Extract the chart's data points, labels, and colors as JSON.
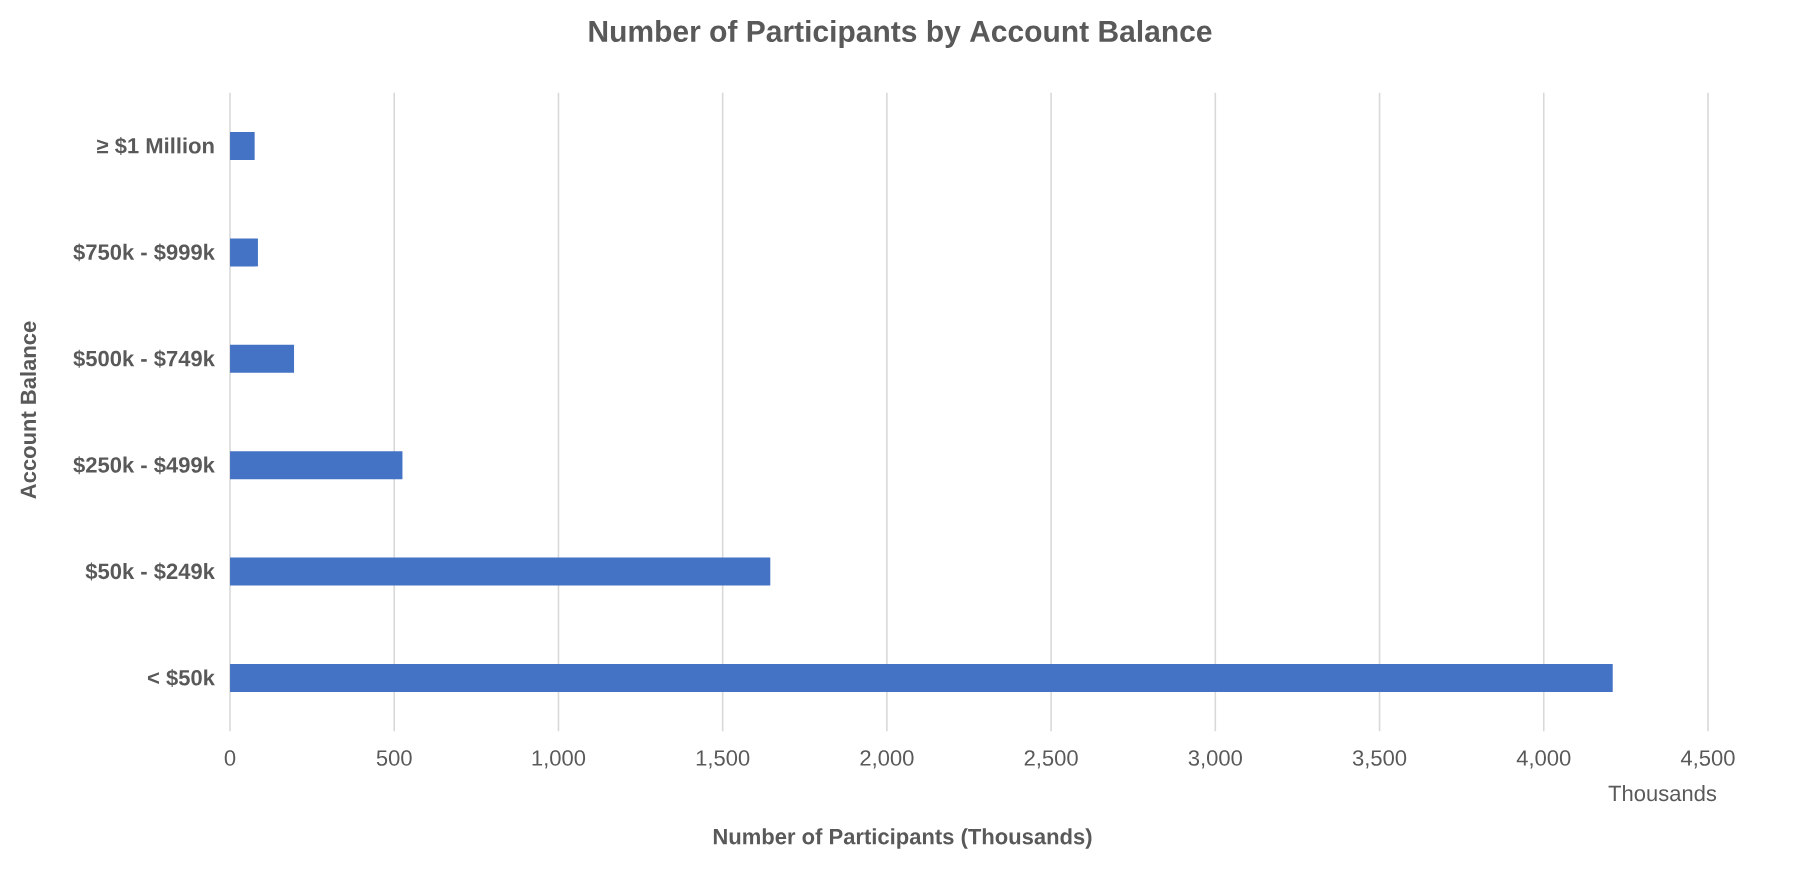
{
  "chart_data": {
    "type": "bar",
    "orientation": "horizontal",
    "title": "Number of Participants by Account Balance",
    "xlabel": "Number of Participants (Thousands)",
    "ylabel": "Account Balance",
    "categories": [
      "≥ $1 Million",
      "$750k - $999k",
      "$500k - $749k",
      "$250k - $499k",
      "$50k - $249k",
      "< $50k"
    ],
    "values": [
      75,
      85,
      195,
      525,
      1645,
      4210
    ],
    "color": "#4472c4",
    "xlim": [
      0,
      4500
    ],
    "xticks": [
      0,
      500,
      {
        "value": 1000,
        "label": "1,000"
      },
      {
        "value": 1500,
        "label": "1,500"
      },
      {
        "value": 2000,
        "label": "2,000"
      },
      {
        "value": 2500,
        "label": "2,500"
      },
      {
        "value": 3000,
        "label": "3,000"
      },
      {
        "value": 3500,
        "label": "3,500"
      },
      {
        "value": 4000,
        "label": "4,000"
      },
      {
        "value": 4500,
        "label": "4,500"
      }
    ],
    "annotations": [
      "Thousands"
    ],
    "grid": "x"
  }
}
